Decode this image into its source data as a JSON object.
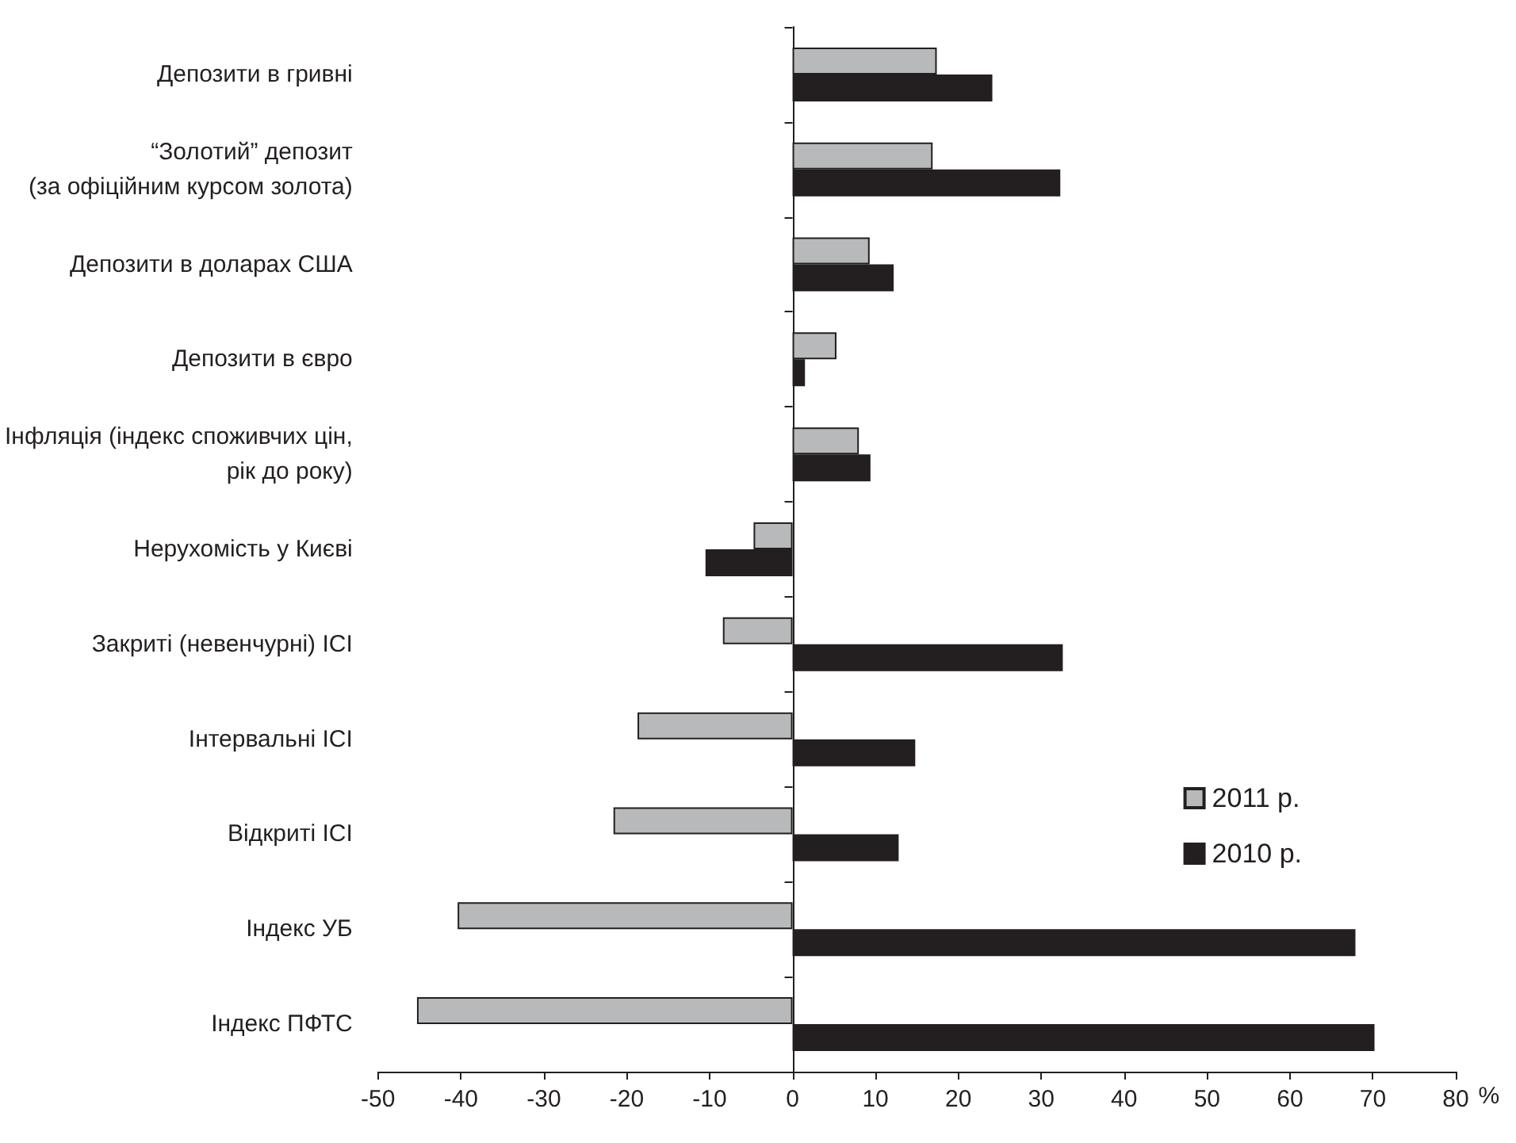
{
  "chart_data": {
    "type": "bar",
    "orientation": "horizontal",
    "xlabel": "%",
    "categories": [
      "Депозити в гривні",
      "“Золотий” депозит\n(за офіційним курсом золота)",
      "Депозити в доларах США",
      "Депозити в євро",
      "Інфляція (індекс споживчих цін,\nрік до року)",
      "Нерухомість у Києві",
      "Закриті (невенчурні) ІСІ",
      "Інтервальні ІСІ",
      "Відкриті ІСІ",
      "Індекс УБ",
      "Індекс ПФТС"
    ],
    "series": [
      {
        "name": "2011 р.",
        "color": "#b8b9bb",
        "values": [
          17.4,
          16.9,
          9.3,
          5.3,
          8.0,
          -4.7,
          -8.4,
          -18.7,
          -21.6,
          -40.4,
          -45.3
        ]
      },
      {
        "name": "2010 р.",
        "color": "#231f20",
        "values": [
          24.1,
          32.3,
          12.2,
          1.5,
          9.4,
          -10.5,
          32.6,
          14.8,
          12.8,
          67.9,
          70.2
        ]
      }
    ],
    "xlim": [
      -50,
      80
    ],
    "xticks": [
      -50,
      -40,
      -30,
      -20,
      -10,
      0,
      10,
      20,
      30,
      40,
      50,
      60,
      70,
      80
    ],
    "legend": "right"
  }
}
